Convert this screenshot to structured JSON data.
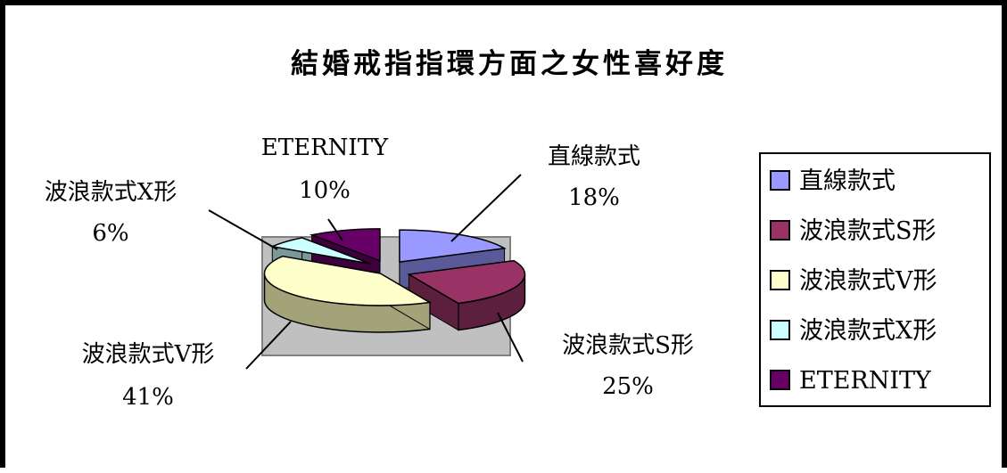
{
  "chart_data": {
    "type": "pie",
    "title": "結婚戒指指環方面之女性喜好度",
    "categories": [
      "直線款式",
      "波浪款式S形",
      "波浪款式V形",
      "波浪款式X形",
      "ETERNITY"
    ],
    "values": [
      18,
      25,
      41,
      6,
      10
    ],
    "percent_labels": [
      "18%",
      "25%",
      "41%",
      "6%",
      "10%"
    ],
    "colors": [
      "#9999ff",
      "#993366",
      "#ffffcc",
      "#ccffff",
      "#660066"
    ],
    "legend_position": "right",
    "three_d": true
  }
}
